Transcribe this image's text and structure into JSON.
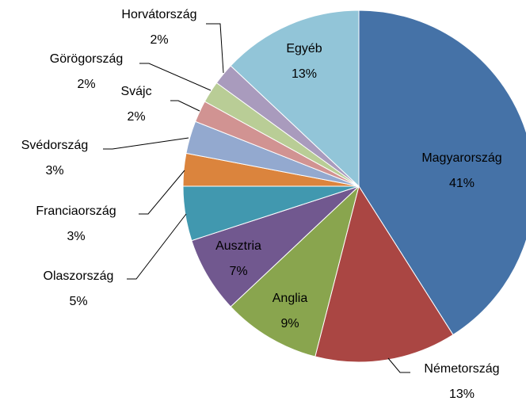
{
  "chart_data": {
    "type": "pie",
    "categories": [
      "Magyarország",
      "Németország",
      "Anglia",
      "Ausztria",
      "Olaszország",
      "Franciaország",
      "Svédország",
      "Svájc",
      "Görögország",
      "Horvátország",
      "Egyéb"
    ],
    "values": [
      41,
      13,
      9,
      7,
      5,
      3,
      3,
      2,
      2,
      2,
      13
    ],
    "value_labels": [
      "41%",
      "13%",
      "9%",
      "7%",
      "5%",
      "3%",
      "3%",
      "2%",
      "2%",
      "2%",
      "13%"
    ],
    "colors": [
      "#4572a7",
      "#aa4643",
      "#89a54e",
      "#71588f",
      "#4198af",
      "#db843d",
      "#93a9cf",
      "#d19392",
      "#b9cd96",
      "#a99bbd",
      "#92c5d8"
    ]
  }
}
